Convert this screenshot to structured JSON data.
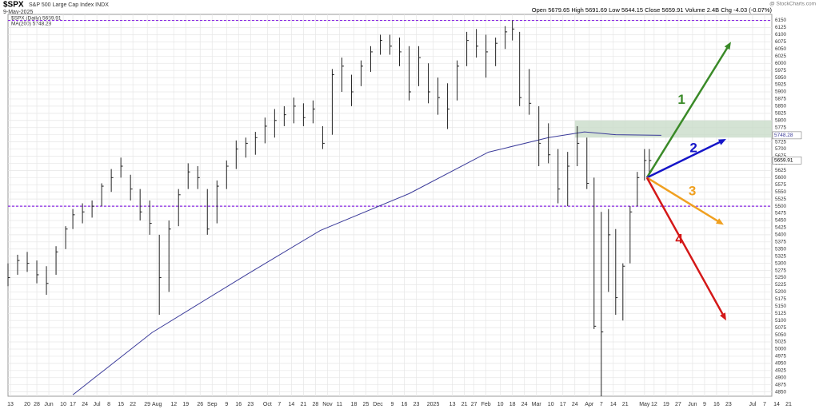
{
  "chart_data": {
    "type": "ohlc",
    "title": "$SPX",
    "subtitle": "S&P 500 Large Cap Index INDX",
    "date": "9-May-2025",
    "quote": "Open 5679.65 High 5691.69 Low 5644.15 Close 5659.91 Volume 2.4B Chg -4.03 (-0.07%)",
    "credit": "@ StockCharts.com",
    "price_legend": "$SPX (Daily) 5659.91",
    "ma_legend": "MA(200) 5748.28",
    "last_label": "5659.91",
    "ma_label": "5748.28",
    "xlim": [
      0,
      318
    ],
    "ylim": [
      4835,
      6160
    ],
    "grid": true,
    "xticks": [
      {
        "value": 1,
        "label": "13"
      },
      {
        "value": 8,
        "label": "20"
      },
      {
        "value": 12,
        "label": "28"
      },
      {
        "value": 17,
        "label": "Jun"
      },
      {
        "value": 23,
        "label": "10"
      },
      {
        "value": 27,
        "label": "17"
      },
      {
        "value": 32,
        "label": "24"
      },
      {
        "value": 37,
        "label": "Jul"
      },
      {
        "value": 42,
        "label": "8"
      },
      {
        "value": 47,
        "label": "15"
      },
      {
        "value": 52,
        "label": "22"
      },
      {
        "value": 58,
        "label": "29"
      },
      {
        "value": 62,
        "label": "Aug"
      },
      {
        "value": 69,
        "label": "12"
      },
      {
        "value": 74,
        "label": "19"
      },
      {
        "value": 80,
        "label": "26"
      },
      {
        "value": 85,
        "label": "Sep"
      },
      {
        "value": 91,
        "label": "9"
      },
      {
        "value": 96,
        "label": "16"
      },
      {
        "value": 101,
        "label": "23"
      },
      {
        "value": 108,
        "label": "Oct"
      },
      {
        "value": 113,
        "label": "7"
      },
      {
        "value": 118,
        "label": "14"
      },
      {
        "value": 123,
        "label": "21"
      },
      {
        "value": 128,
        "label": "28"
      },
      {
        "value": 133,
        "label": "Nov"
      },
      {
        "value": 138,
        "label": "11"
      },
      {
        "value": 144,
        "label": "18"
      },
      {
        "value": 149,
        "label": "25"
      },
      {
        "value": 154,
        "label": "Dec"
      },
      {
        "value": 160,
        "label": "9"
      },
      {
        "value": 165,
        "label": "16"
      },
      {
        "value": 170,
        "label": "23"
      },
      {
        "value": 177,
        "label": "2025"
      },
      {
        "value": 185,
        "label": "13"
      },
      {
        "value": 190,
        "label": "21"
      },
      {
        "value": 194,
        "label": "27"
      },
      {
        "value": 199,
        "label": "Feb"
      },
      {
        "value": 205,
        "label": "10"
      },
      {
        "value": 210,
        "label": "18"
      },
      {
        "value": 215,
        "label": "24"
      },
      {
        "value": 220,
        "label": "Mar"
      },
      {
        "value": 226,
        "label": "10"
      },
      {
        "value": 231,
        "label": "17"
      },
      {
        "value": 236,
        "label": "24"
      },
      {
        "value": 242,
        "label": "Apr"
      },
      {
        "value": 247,
        "label": "7"
      },
      {
        "value": 252,
        "label": "14"
      },
      {
        "value": 257,
        "label": "21"
      },
      {
        "value": 265,
        "label": "May"
      },
      {
        "value": 269,
        "label": "12"
      },
      {
        "value": 274,
        "label": "19"
      },
      {
        "value": 279,
        "label": "27"
      },
      {
        "value": 285,
        "label": "Jun"
      },
      {
        "value": 290,
        "label": "9"
      },
      {
        "value": 295,
        "label": "16"
      },
      {
        "value": 300,
        "label": "23"
      },
      {
        "value": 310,
        "label": "Jul"
      },
      {
        "value": 315,
        "label": "7"
      },
      {
        "value": 320,
        "label": "14"
      },
      {
        "value": 325,
        "label": "21"
      }
    ],
    "yticks": [
      4850,
      4875,
      4900,
      4925,
      4950,
      4975,
      5000,
      5025,
      5050,
      5075,
      5100,
      5125,
      5150,
      5175,
      5200,
      5225,
      5250,
      5275,
      5300,
      5325,
      5350,
      5375,
      5400,
      5425,
      5450,
      5475,
      5500,
      5525,
      5550,
      5575,
      5600,
      5625,
      5650,
      5675,
      5700,
      5725,
      5750,
      5775,
      5800,
      5825,
      5850,
      5875,
      5900,
      5925,
      5950,
      5975,
      6000,
      6025,
      6050,
      6075,
      6100,
      6125,
      6150
    ],
    "x": [
      0,
      4,
      8,
      12,
      16,
      20,
      24,
      27,
      31,
      35,
      39,
      43,
      47,
      51,
      55,
      59,
      63,
      67,
      71,
      75,
      79,
      83,
      87,
      91,
      95,
      99,
      103,
      107,
      111,
      115,
      119,
      123,
      127,
      131,
      135,
      139,
      143,
      147,
      151,
      155,
      159,
      163,
      167,
      171,
      175,
      179,
      183,
      187,
      191,
      195,
      199,
      203,
      207,
      210,
      213,
      217,
      221,
      225,
      229,
      233,
      237,
      241,
      244,
      247,
      250,
      253,
      256,
      259,
      262,
      265,
      267
    ],
    "high": [
      5300,
      5330,
      5340,
      5310,
      5290,
      5360,
      5430,
      5490,
      5510,
      5520,
      5580,
      5630,
      5670,
      5610,
      5560,
      5520,
      5400,
      5450,
      5560,
      5650,
      5640,
      5560,
      5590,
      5660,
      5730,
      5740,
      5760,
      5810,
      5840,
      5850,
      5880,
      5860,
      5870,
      5780,
      5980,
      6020,
      5960,
      6010,
      6060,
      6100,
      6100,
      6090,
      6060,
      6060,
      6000,
      5950,
      5930,
      6010,
      6110,
      6120,
      6100,
      6090,
      6130,
      6150,
      6110,
      5980,
      5850,
      5790,
      5700,
      5690,
      5780,
      5740,
      5600,
      5480,
      5490,
      5420,
      5300,
      5500,
      5620,
      5700,
      5700
    ],
    "low": [
      5220,
      5260,
      5270,
      5230,
      5190,
      5260,
      5350,
      5420,
      5440,
      5460,
      5500,
      5550,
      5600,
      5520,
      5450,
      5400,
      5120,
      5200,
      5430,
      5560,
      5560,
      5400,
      5440,
      5560,
      5630,
      5670,
      5680,
      5720,
      5740,
      5780,
      5790,
      5780,
      5790,
      5700,
      5750,
      5900,
      5850,
      5920,
      5970,
      6030,
      6030,
      5990,
      5870,
      5920,
      5860,
      5820,
      5770,
      5870,
      5990,
      6020,
      5950,
      5990,
      6050,
      6080,
      5850,
      5820,
      5640,
      5650,
      5510,
      5500,
      5640,
      5560,
      5070,
      4835,
      5200,
      5120,
      5100,
      5300,
      5500,
      5590,
      5610
    ],
    "close": [
      5250,
      5310,
      5300,
      5260,
      5230,
      5340,
      5420,
      5470,
      5480,
      5500,
      5570,
      5600,
      5640,
      5560,
      5480,
      5440,
      5250,
      5420,
      5540,
      5620,
      5600,
      5420,
      5570,
      5640,
      5700,
      5720,
      5740,
      5780,
      5800,
      5820,
      5850,
      5810,
      5840,
      5720,
      5960,
      5990,
      5900,
      5990,
      6040,
      6080,
      6060,
      6040,
      5900,
      6020,
      5900,
      5880,
      5840,
      5990,
      6080,
      6060,
      6040,
      6070,
      6110,
      6120,
      5880,
      5860,
      5720,
      5680,
      5560,
      5640,
      5720,
      5580,
      5080,
      5060,
      5400,
      5180,
      5290,
      5480,
      5600,
      5660,
      5660
    ],
    "bar_color": "#222222",
    "ma": {
      "color": "#3b3b9a",
      "x": [
        27,
        60,
        100,
        130,
        167,
        200,
        225,
        240,
        253,
        272
      ],
      "values": [
        4840,
        5058,
        5264,
        5415,
        5544,
        5689,
        5740,
        5760,
        5750,
        5748
      ]
    },
    "hlines": [
      {
        "value": 6150,
        "color": "#8a2be2"
      },
      {
        "value": 5500,
        "color": "#8a2be2"
      }
    ],
    "zone": {
      "x": [
        236,
        318
      ],
      "values": [
        5740,
        5800
      ],
      "color": "#c9dcc9"
    },
    "arrows": [
      {
        "label": "1",
        "color": "#3a8a28",
        "x": [
          266,
          301
        ],
        "values": [
          5600,
          6075
        ]
      },
      {
        "label": "2",
        "color": "#1515c8",
        "x": [
          266,
          299
        ],
        "values": [
          5600,
          5735
        ]
      },
      {
        "label": "3",
        "color": "#f0a020",
        "x": [
          266,
          298
        ],
        "values": [
          5600,
          5435
        ]
      },
      {
        "label": "4",
        "color": "#d41818",
        "x": [
          266,
          299
        ],
        "values": [
          5600,
          5100
        ]
      }
    ]
  }
}
